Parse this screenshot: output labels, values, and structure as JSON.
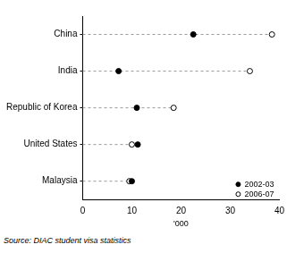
{
  "chart_data": {
    "type": "dot",
    "orientation": "horizontal",
    "categories": [
      "China",
      "India",
      "Republic of Korea",
      "United States",
      "Malaysia"
    ],
    "series": [
      {
        "name": "2002-03",
        "color": "#000000",
        "marker": "filled_circle",
        "values": [
          22.5,
          7.3,
          11,
          11.2,
          10
        ]
      },
      {
        "name": "2006-07",
        "color": "#000000",
        "marker": "open_circle",
        "values": [
          38.5,
          34,
          18.5,
          10,
          9.5
        ]
      }
    ],
    "x_label": "'000",
    "xlim": [
      0,
      40
    ],
    "xticks": [
      0,
      10,
      20,
      30,
      40
    ],
    "grid": false,
    "legend": "lower right",
    "annotations": [
      "Source: DIAC student visa statistics"
    ]
  }
}
